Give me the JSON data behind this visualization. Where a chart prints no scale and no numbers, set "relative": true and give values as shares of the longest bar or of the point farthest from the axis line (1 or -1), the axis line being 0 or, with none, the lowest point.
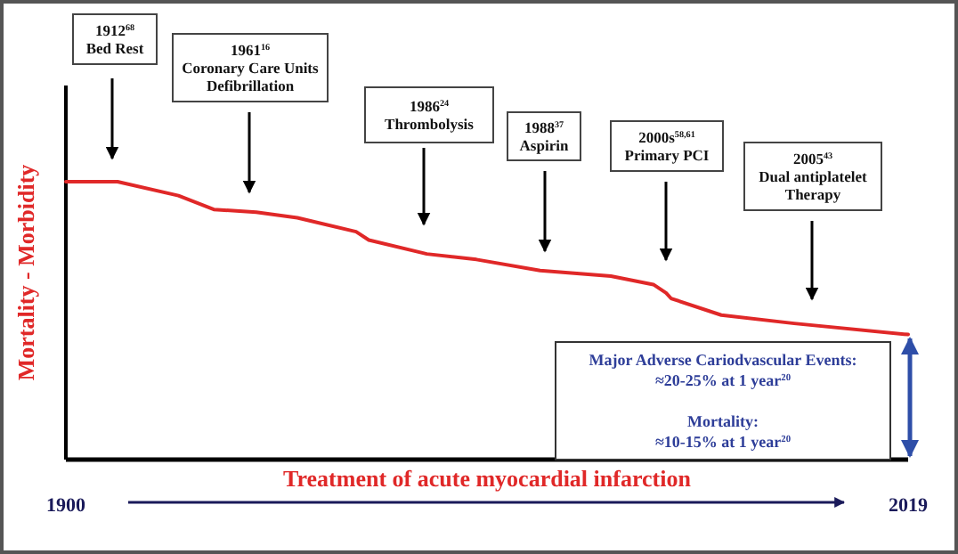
{
  "chart_data": {
    "type": "line",
    "relative": true,
    "xlabel": "Treatment of acute myocardial infarction",
    "ylabel": "Mortality - Morbidity",
    "xlim": [
      1900,
      2019
    ],
    "xticks": [
      1900,
      2019
    ],
    "x": [
      1900,
      1907.3,
      1915.9,
      1920.9,
      1926.9,
      1932.7,
      1941,
      1942.8,
      1951,
      1958,
      1967,
      1977,
      1983,
      1984.8,
      1985.5,
      1992.6,
      2002.9,
      2019
    ],
    "series": [
      {
        "color": "#e02828",
        "values": [
          1.0,
          1.0,
          0.95,
          0.9,
          0.89,
          0.87,
          0.82,
          0.79,
          0.74,
          0.72,
          0.68,
          0.66,
          0.63,
          0.6,
          0.58,
          0.52,
          0.49,
          0.45
        ]
      }
    ],
    "grid": false,
    "marker": "none",
    "line_style": "solid",
    "annotations": [
      "1912$^{68}$\nBed Rest",
      "1961$^{16}$\nCoronary Care Units\nDefibrillation",
      "1986$^{24}$\nThrombolysis",
      "1988$^{37}$\nAspirin",
      "2000s$^{58,61}$\nPrimary PCI",
      "2005$^{43}$\nDual antiplatelet\nTherapy",
      "Major Adverse Cariodvascular Events:\n≈20-25% at 1 year$^{20}$\n\nMortality:\n≈10-15% at 1 year$^{20}$"
    ]
  }
}
